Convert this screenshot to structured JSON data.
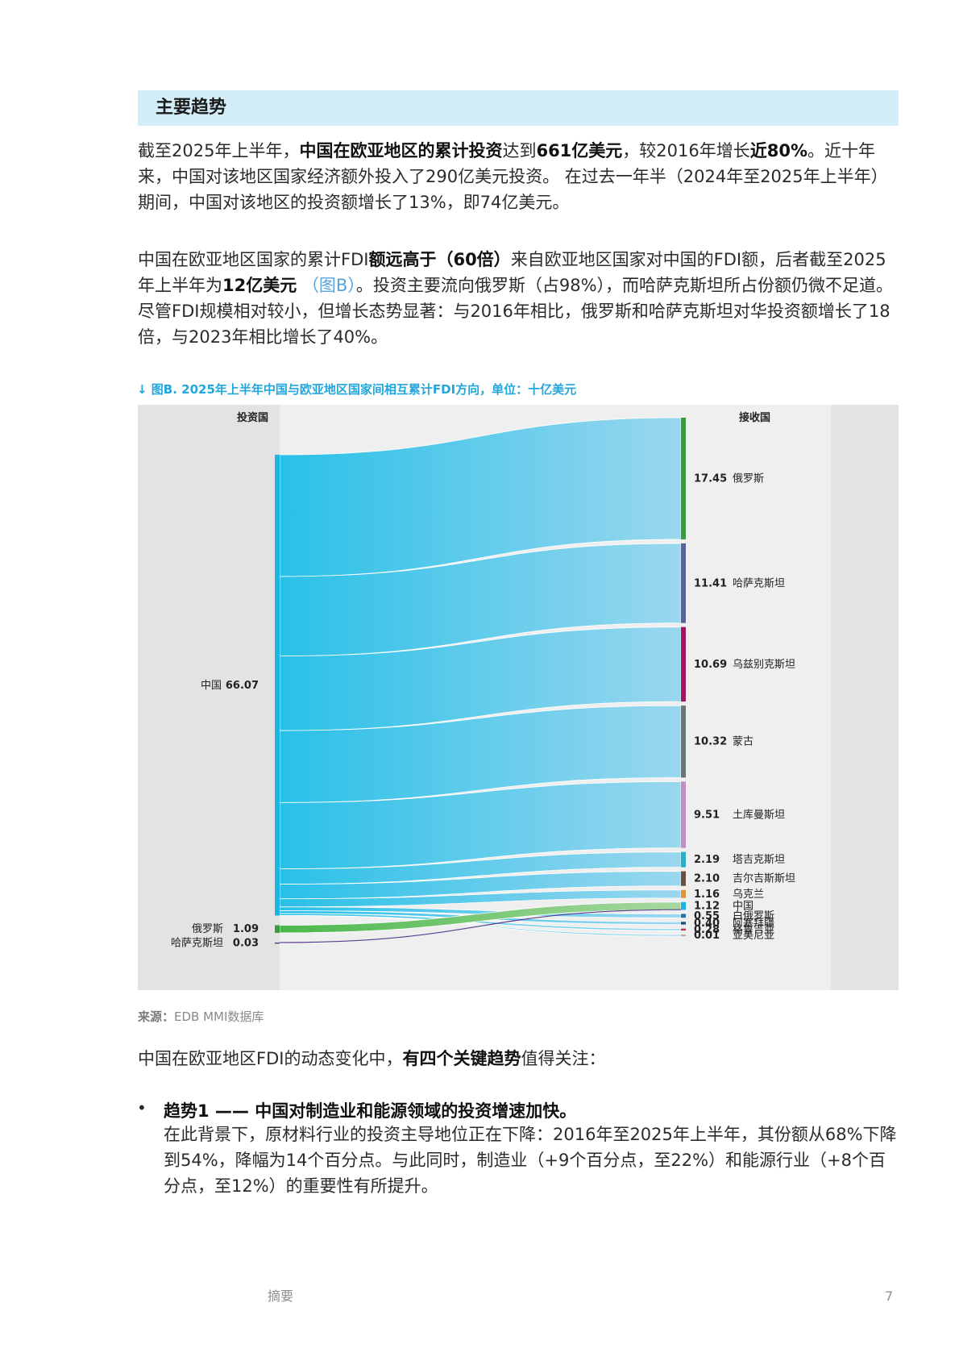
{
  "heading": "主要趋势",
  "p1": {
    "a": "截至2025年上半年，",
    "b": "中国在欧亚地区的累计投资",
    "c": "达到",
    "d": "661亿美元",
    "e": "，较2016年增长",
    "f": "近80%",
    "g": "。近十年来，中国对该地区国家经济额外投入了290亿美元投资。 在过去一年半（2024年至2025年上半年）期间，中国对该地区的投资额增长了13%，即74亿美元。"
  },
  "p2": {
    "a": "中国在欧亚地区国家的累计FDI",
    "b": "额远高于（60倍）",
    "c": "来自欧亚地区国家对中国的FDI额，后者截至2025年上半年为",
    "d": "12亿美元",
    "e": "（图B）",
    "f": "。投资主要流向俄罗斯（占98%），而哈萨克斯坦所占份额仍微不足道。尽管FDI规模相对较小，但增长态势显著：与2016年相比，俄罗斯和哈萨克斯坦对华投资额增长了18倍，与2023年相比增长了40%。"
  },
  "figure_title": "↓ 图B. 2025年上半年中国与欧亚地区国家间相互累计FDI方向，单位：十亿美元",
  "chart_data": {
    "type": "sankey",
    "left_header": "投资国",
    "right_header": "接收国",
    "sources": [
      {
        "name": "中国",
        "value": "66.07"
      },
      {
        "name": "俄罗斯",
        "value": "1.09"
      },
      {
        "name": "哈萨克斯坦",
        "value": "0.03"
      }
    ],
    "targets": [
      {
        "name": "俄罗斯",
        "value": "17.45",
        "color": "#3c9a3c"
      },
      {
        "name": "哈萨克斯坦",
        "value": "11.41",
        "color": "#5a6298"
      },
      {
        "name": "乌兹别克斯坦",
        "value": "10.69",
        "color": "#a3145f"
      },
      {
        "name": "蒙古",
        "value": "10.32",
        "color": "#6b7478"
      },
      {
        "name": "土库曼斯坦",
        "value": "9.51",
        "color": "#c48fbf"
      },
      {
        "name": "塔吉克斯坦",
        "value": "2.19",
        "color": "#27aec8"
      },
      {
        "name": "吉尔吉斯斯坦",
        "value": "2.10",
        "color": "#6a5040"
      },
      {
        "name": "乌克兰",
        "value": "1.16",
        "color": "#dd9540"
      },
      {
        "name": "中国",
        "value": "1.12",
        "color": "#1fb3e3"
      },
      {
        "name": "白俄罗斯",
        "value": "0.55",
        "color": "#2872a6"
      },
      {
        "name": "阿塞拜疆",
        "value": "0.40",
        "color": "#2a4f85"
      },
      {
        "name": "格鲁吉亚",
        "value": "0.28",
        "color": "#c0314a"
      },
      {
        "name": "亚美尼亚",
        "value": "0.01",
        "color": "#c9a59a"
      }
    ],
    "links": [
      {
        "source": "中国",
        "target": "俄罗斯",
        "value": 17.45
      },
      {
        "source": "中国",
        "target": "哈萨克斯坦",
        "value": 11.41
      },
      {
        "source": "中国",
        "target": "乌兹别克斯坦",
        "value": 10.69
      },
      {
        "source": "中国",
        "target": "蒙古",
        "value": 10.32
      },
      {
        "source": "中国",
        "target": "土库曼斯坦",
        "value": 9.51
      },
      {
        "source": "中国",
        "target": "塔吉克斯坦",
        "value": 2.19
      },
      {
        "source": "中国",
        "target": "吉尔吉斯斯坦",
        "value": 2.1
      },
      {
        "source": "中国",
        "target": "乌克兰",
        "value": 1.16
      },
      {
        "source": "中国",
        "target": "白俄罗斯",
        "value": 0.55
      },
      {
        "source": "中国",
        "target": "阿塞拜疆",
        "value": 0.4
      },
      {
        "source": "中国",
        "target": "格鲁吉亚",
        "value": 0.28
      },
      {
        "source": "中国",
        "target": "亚美尼亚",
        "value": 0.01
      },
      {
        "source": "俄罗斯",
        "target": "中国",
        "value": 1.09
      },
      {
        "source": "哈萨克斯坦",
        "target": "中国",
        "value": 0.03
      }
    ],
    "colors": {
      "china_flow": "#29c0e8",
      "russia_flow": "#6cc36c",
      "kazakhstan_flow": "#5a3f8f",
      "panel_bg": "#e3e3e3",
      "middle_bg": "#efefef"
    }
  },
  "source": {
    "label": "来源：",
    "text": "EDB MMI数据库"
  },
  "p3": {
    "a": "中国在欧亚地区FDI的动态变化中，",
    "b": "有四个关键趋势",
    "c": "值得关注："
  },
  "trend1": {
    "bullet": "•",
    "title": "趋势1 —— 中国对制造业和能源领域的投资增速加快。",
    "body": "在此背景下，原材料行业的投资主导地位正在下降：2016年至2025年上半年，其份额从68%下降到54%，降幅为14个百分点。与此同时，制造业（+9个百分点，至22%）和能源行业（+8个百分点，至12%）的重要性有所提升。"
  },
  "footer": {
    "label": "摘要",
    "page": "7"
  }
}
